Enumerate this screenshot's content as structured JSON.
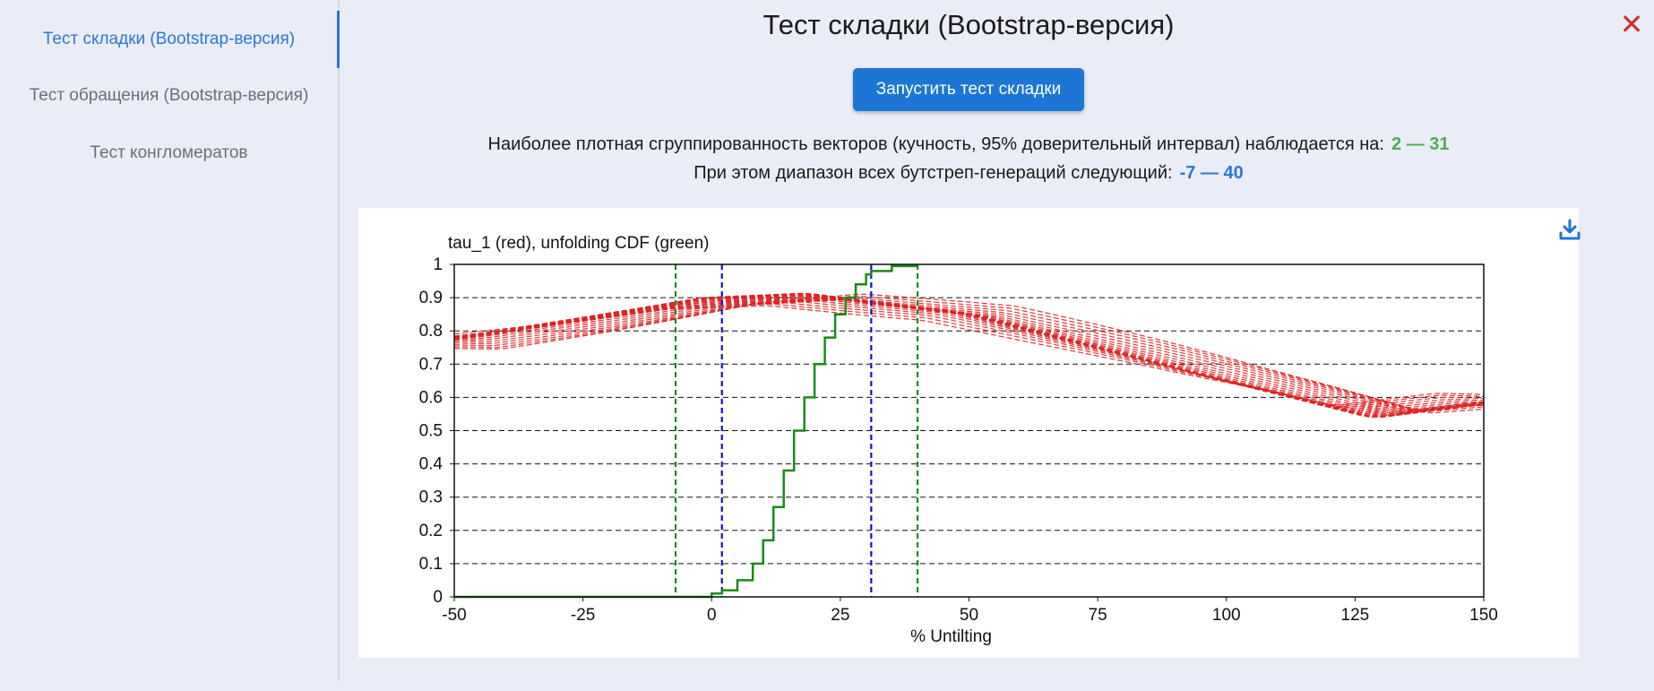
{
  "sidebar": {
    "items": [
      {
        "label": "Тест складки (Bootstrap-версия)",
        "active": true
      },
      {
        "label": "Тест обращения (Bootstrap-версия)",
        "active": false
      },
      {
        "label": "Тест конгломератов",
        "active": false
      }
    ]
  },
  "header": {
    "title": "Тест складки (Bootstrap-версия)",
    "close_icon": "close-icon"
  },
  "run_button": {
    "label": "Запустить тест складки"
  },
  "results": {
    "densest_label": "Наиболее плотная сгруппированность векторов (кучность, 95% доверительный интервал) наблюдается на:",
    "densest_value": "2 — 31",
    "range_label": "При этом диапазон всех бутстреп-генераций следующий:",
    "range_value": "-7 — 40"
  },
  "colors": {
    "accent": "#1d76d3",
    "green_value": "#4caf50",
    "blue_value": "#2a78d2",
    "close": "#d32f2f",
    "tau_lines": "#e02020",
    "cdf": "#1a8a1a"
  },
  "download_icon": "download-icon",
  "chart_data": {
    "type": "line",
    "title": "tau_1 (red), unfolding CDF (green)",
    "xlabel": "% Untilting",
    "ylabel": "",
    "xlim": [
      -50,
      150
    ],
    "ylim": [
      0,
      1
    ],
    "x_ticks": [
      -50,
      -25,
      0,
      25,
      50,
      75,
      100,
      125,
      150
    ],
    "y_ticks": [
      0,
      0.1,
      0.2,
      0.3,
      0.4,
      0.5,
      0.6,
      0.7,
      0.8,
      0.9,
      1
    ],
    "y_tick_labels": [
      "0",
      "0.1",
      "0.2",
      "0.3",
      "0.4",
      "0.5",
      "0.6",
      "0.7",
      "0.8",
      "0.9",
      "1"
    ],
    "grid": "horizontal dashed",
    "vlines": [
      {
        "x": -7,
        "color": "green",
        "style": "dashed"
      },
      {
        "x": 40,
        "color": "green",
        "style": "dashed"
      },
      {
        "x": 2,
        "color": "blue",
        "style": "dashed"
      },
      {
        "x": 31,
        "color": "blue",
        "style": "dashed"
      }
    ],
    "tau_series_style": "red dashed",
    "tau_series_count": 24,
    "tau_representative": {
      "x": [
        -50,
        0,
        20,
        50,
        100,
        130,
        150
      ],
      "y": [
        0.78,
        0.9,
        0.91,
        0.85,
        0.65,
        0.54,
        0.58
      ]
    },
    "cdf": {
      "x": [
        -7,
        0,
        2,
        5,
        8,
        10,
        12,
        14,
        16,
        18,
        20,
        22,
        24,
        26,
        28,
        30,
        31,
        35,
        40
      ],
      "y": [
        0,
        0.01,
        0.02,
        0.05,
        0.1,
        0.17,
        0.27,
        0.38,
        0.5,
        0.6,
        0.7,
        0.78,
        0.85,
        0.9,
        0.94,
        0.97,
        0.98,
        0.995,
        1
      ]
    }
  }
}
